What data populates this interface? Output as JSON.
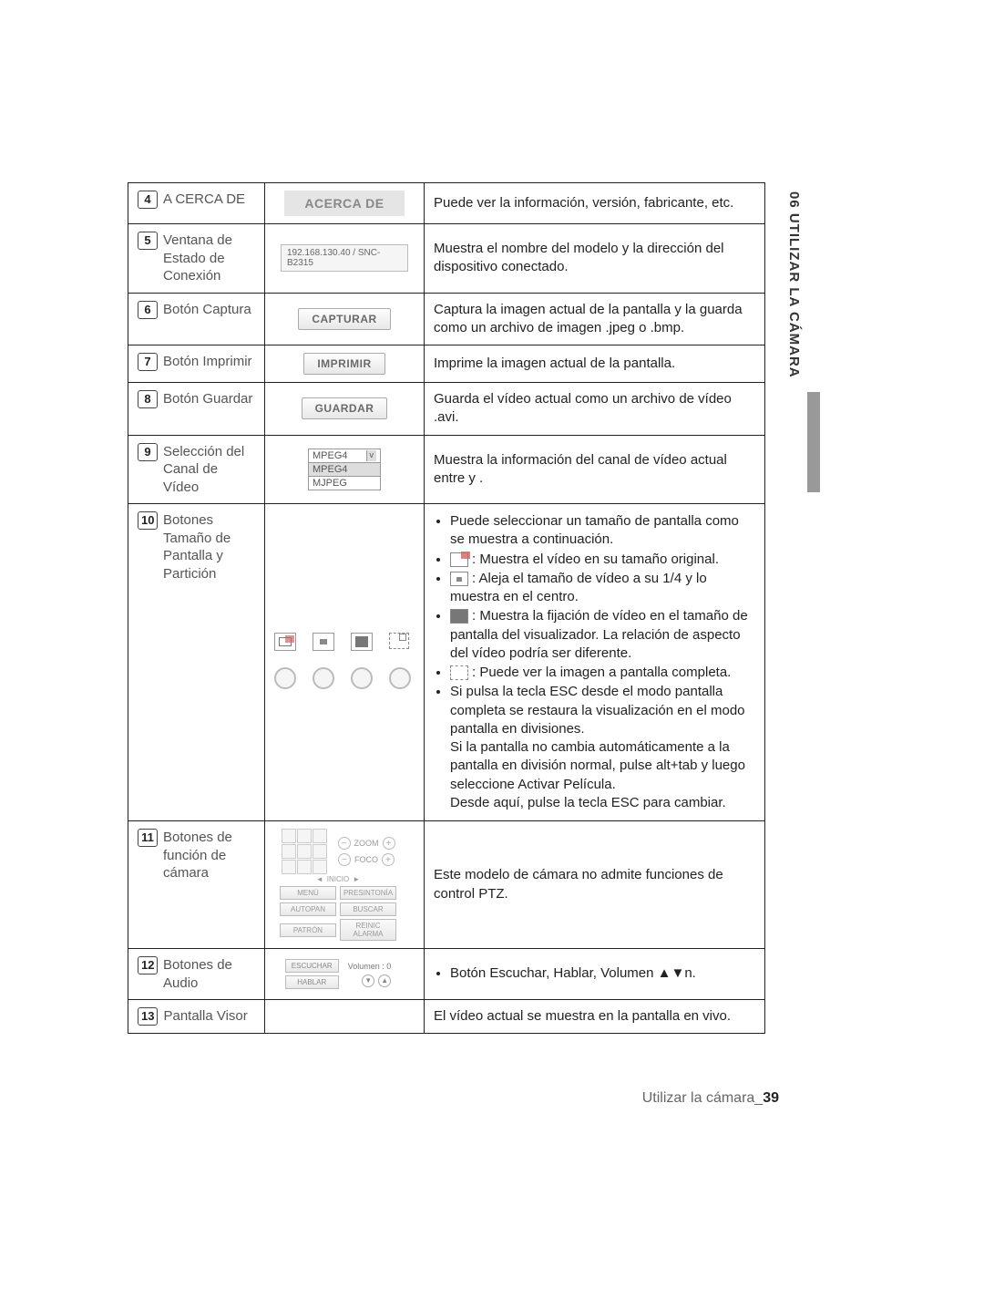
{
  "sideTab": "06 UTILIZAR LA CÁMARA",
  "footer": {
    "text": "Utilizar la cámara_",
    "page": "39"
  },
  "rows": [
    {
      "num": "4",
      "label": "A CERCA DE",
      "widget": "about",
      "widget_text": "ACERCA DE",
      "desc": "Puede ver la información, versión, fabricante, etc."
    },
    {
      "num": "5",
      "label": "Ventana de Estado de Conexión",
      "widget": "ip",
      "widget_text": "192.168.130.40 / SNC-B2315",
      "desc": "Muestra el nombre del modelo y la dirección del dispositivo conectado."
    },
    {
      "num": "6",
      "label": "Botón Captura",
      "widget": "btn",
      "widget_text": "CAPTURAR",
      "desc": "Captura la imagen actual de la pantalla y la guarda como un archivo de imagen .jpeg o .bmp."
    },
    {
      "num": "7",
      "label": "Botón Imprimir",
      "widget": "btn",
      "widget_text": "IMPRIMIR",
      "desc": "Imprime la imagen actual de la pantalla."
    },
    {
      "num": "8",
      "label": "Botón Guardar",
      "widget": "btn",
      "widget_text": "GUARDAR",
      "desc": "Guarda el vídeo actual como un archivo de vídeo .avi."
    },
    {
      "num": "9",
      "label": "Selección del Canal de Vídeo",
      "widget": "select",
      "select": {
        "value": "MPEG4",
        "options": [
          "MPEG4",
          "MJPEG"
        ]
      },
      "desc": "Muestra la información del canal de vídeo actual entre <MJPEG> y <MPEG4>."
    },
    {
      "num": "10",
      "label": "Botones Tamaño de Pantalla y Partición",
      "widget": "sizes",
      "desc_list": {
        "header": "Puede seleccionar un tamaño de pantalla como se muestra a continuación.",
        "items": [
          {
            "icon": "i1",
            "text": ": Muestra el vídeo en su tamaño original."
          },
          {
            "icon": "i2",
            "text": ": Aleja el tamaño de vídeo a su 1/4 y lo muestra en el centro."
          },
          {
            "icon": "i3",
            "text": ": Muestra la fijación de vídeo en el tamaño de pantalla del visualizador. La relación de aspecto del vídeo podría ser diferente."
          },
          {
            "icon": "i4",
            "text": ": Puede ver la imagen a pantalla completa."
          }
        ],
        "footer": "Si pulsa la tecla ESC desde el modo pantalla completa se restaura la visualización en el modo pantalla en divisiones.\nSi la pantalla no cambia automáticamente a la pantalla en división normal, pulse alt+tab y luego seleccione Activar Película.\nDesde aquí, pulse la tecla ESC para cambiar."
      }
    },
    {
      "num": "11",
      "label": "Botones de función de cámara",
      "widget": "ptz",
      "ptz": {
        "inicio": "INICIO",
        "zoom": "ZOOM",
        "foco": "FOCO",
        "btns": [
          "MENÚ",
          "PRESINTONÍA",
          "AUTOPAN",
          "BUSCAR",
          "PATRÓN",
          "REINIC ALARMA"
        ]
      },
      "desc": "Este modelo de cámara no admite funciones de control PTZ."
    },
    {
      "num": "12",
      "label": "Botones de Audio",
      "widget": "audio",
      "audio": {
        "listen": "ESCUCHAR",
        "talk": "HABLAR",
        "vol": "Volumen : 0"
      },
      "desc_bullet": "Botón Escuchar, Hablar, Volumen ▲▼n."
    },
    {
      "num": "13",
      "label": "Pantalla Visor",
      "widget": "none",
      "desc": "El vídeo actual se muestra en la pantalla en vivo."
    }
  ]
}
